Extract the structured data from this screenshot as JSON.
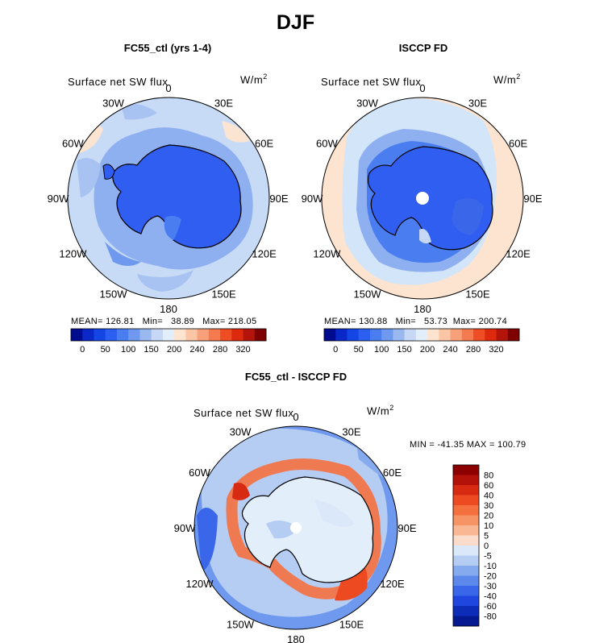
{
  "figure": {
    "season": "DJF"
  },
  "panels": [
    {
      "title": "FC55_ctl (yrs 1-4)",
      "variable": "Surface net SW flux",
      "units": "W/m",
      "units_exp": "2",
      "stats": {
        "mean_label": "MEAN=",
        "mean": "126.81",
        "min_label": "Min=",
        "min": "38.89",
        "max_label": "Max=",
        "max": "218.05"
      }
    },
    {
      "title": "ISCCP FD",
      "variable": "Surface net SW flux",
      "units": "W/m",
      "units_exp": "2",
      "stats": {
        "mean_label": "MEAN=",
        "mean": "130.88",
        "min_label": "Min=",
        "min": "53.73",
        "max_label": "Max=",
        "max": "200.74"
      }
    },
    {
      "title": "FC55_ctl - ISCCP FD",
      "variable": "Surface net SW flux",
      "units": "W/m",
      "units_exp": "2",
      "stats_text": "MIN = -41.35 MAX = 100.79"
    }
  ],
  "longitude_labels": [
    "0",
    "30E",
    "60E",
    "90E",
    "120E",
    "150E",
    "180",
    "150W",
    "120W",
    "90W",
    "60W",
    "30W"
  ],
  "abs_colorbar": {
    "tick_labels": [
      "0",
      "50",
      "100",
      "150",
      "200",
      "240",
      "280",
      "320"
    ],
    "colors": [
      "#000c8f",
      "#0a28c8",
      "#1446e6",
      "#2a5fef",
      "#4a7ef0",
      "#6f99ee",
      "#9ab8f0",
      "#c6d8f5",
      "#e3eefb",
      "#fde4d1",
      "#fbc6a6",
      "#f8a07a",
      "#f57a50",
      "#ef4e25",
      "#dd2a0f",
      "#b4140a",
      "#7f0000"
    ]
  },
  "diff_colorbar": {
    "tick_labels": [
      "80",
      "60",
      "40",
      "30",
      "20",
      "10",
      "5",
      "0",
      "-5",
      "-10",
      "-20",
      "-30",
      "-40",
      "-60",
      "-80"
    ],
    "colors": [
      "#8c0000",
      "#b3120a",
      "#d62a12",
      "#ee4a22",
      "#f5703f",
      "#f79466",
      "#f9b893",
      "#fbdccb",
      "#dbe8fa",
      "#b5cdf3",
      "#86aaee",
      "#5c88ec",
      "#3a66ea",
      "#1f46de",
      "#0d2cb8",
      "#051a90"
    ]
  },
  "colors": {
    "land_ice": "#2f5ef0",
    "ocean_light": "#d3e5f8",
    "coastline": "#000000"
  }
}
